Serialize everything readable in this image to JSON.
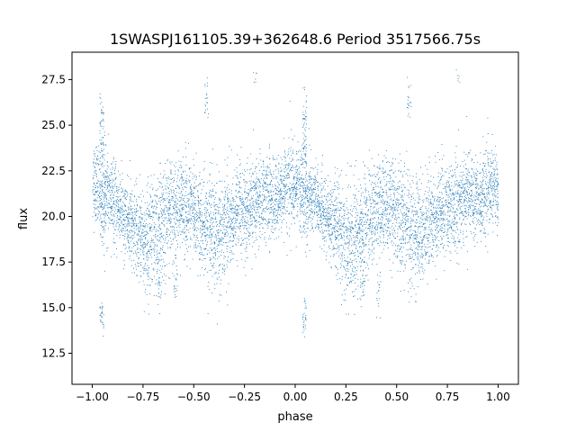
{
  "chart_data": {
    "type": "scatter",
    "title": "1SWASPJ161105.39+362648.6 Period 3517566.75s",
    "xlabel": "phase",
    "ylabel": "flux",
    "xlim": [
      -1.1,
      1.1
    ],
    "ylim": [
      10.8,
      29.0
    ],
    "xticks": [
      -1.0,
      -0.75,
      -0.5,
      -0.25,
      0.0,
      0.25,
      0.5,
      0.75,
      1.0
    ],
    "xtick_labels": [
      "−1.00",
      "−0.75",
      "−0.50",
      "−0.25",
      "0.00",
      "0.25",
      "0.50",
      "0.75",
      "1.00"
    ],
    "yticks": [
      12.5,
      15.0,
      17.5,
      20.0,
      22.5,
      25.0,
      27.5
    ],
    "ytick_labels": [
      "12.5",
      "15.0",
      "17.5",
      "20.0",
      "22.5",
      "25.0",
      "27.5"
    ],
    "grid": false,
    "marker_color": "#1f77b4",
    "series": [
      {
        "x": [
          -0.99,
          -0.97,
          -0.95,
          -0.93,
          -0.91,
          -0.89,
          -0.87,
          -0.85,
          -0.83,
          -0.81,
          -0.79,
          -0.77,
          -0.75,
          -0.73,
          -0.71,
          -0.69,
          -0.67,
          -0.65,
          -0.63,
          -0.61,
          -0.59,
          -0.57,
          -0.55,
          -0.53,
          -0.51,
          -0.49,
          -0.47,
          -0.45,
          -0.43,
          -0.41,
          -0.39,
          -0.37,
          -0.35,
          -0.33,
          -0.31,
          -0.29,
          -0.27,
          -0.25,
          -0.23,
          -0.21,
          -0.19,
          -0.17,
          -0.15,
          -0.13,
          -0.11,
          -0.09,
          -0.07,
          -0.05,
          -0.03,
          -0.01,
          0.01,
          0.03,
          0.05,
          0.07,
          0.09,
          0.11,
          0.13,
          0.15,
          0.17,
          0.19,
          0.21,
          0.23,
          0.25,
          0.27,
          0.29,
          0.31,
          0.33,
          0.35,
          0.37,
          0.39,
          0.41,
          0.43,
          0.45,
          0.47,
          0.49,
          0.51,
          0.53,
          0.55,
          0.57,
          0.59,
          0.61,
          0.63,
          0.65,
          0.67,
          0.69,
          0.71,
          0.73,
          0.75,
          0.77,
          0.79,
          0.81,
          0.83,
          0.85,
          0.87,
          0.89,
          0.91,
          0.93,
          0.95,
          0.97,
          0.99,
          -0.955,
          -0.955,
          0.045,
          0.045,
          -0.955,
          0.045,
          -0.44,
          0.56,
          -0.59,
          0.41,
          -0.67,
          0.33,
          -0.2,
          0.8
        ],
        "y": [
          21.8,
          21.5,
          20.9,
          21.2,
          21.0,
          20.6,
          20.4,
          20.0,
          19.8,
          19.6,
          19.3,
          19.0,
          18.8,
          18.6,
          18.7,
          18.9,
          19.3,
          19.7,
          20.0,
          20.3,
          20.5,
          20.6,
          20.7,
          20.5,
          20.3,
          20.0,
          19.7,
          19.4,
          19.2,
          19.0,
          19.1,
          19.3,
          19.6,
          19.9,
          20.1,
          20.3,
          20.4,
          20.4,
          20.3,
          20.5,
          20.8,
          21.0,
          21.2,
          21.0,
          20.8,
          20.9,
          21.3,
          21.6,
          21.8,
          21.6,
          21.8,
          21.5,
          20.9,
          21.2,
          21.0,
          20.6,
          20.4,
          20.0,
          19.8,
          19.6,
          19.3,
          19.0,
          18.8,
          18.6,
          18.7,
          18.9,
          19.3,
          19.7,
          20.0,
          20.3,
          20.5,
          20.6,
          20.7,
          20.5,
          20.3,
          20.0,
          19.7,
          19.4,
          19.2,
          19.0,
          19.1,
          19.3,
          19.6,
          19.9,
          20.1,
          20.3,
          20.4,
          20.4,
          20.3,
          20.5,
          20.8,
          21.0,
          21.2,
          21.0,
          20.8,
          20.9,
          21.3,
          21.6,
          21.8,
          21.6,
          25.2,
          14.6,
          25.2,
          14.6,
          23.5,
          23.5,
          26.3,
          26.3,
          16.3,
          16.3,
          15.9,
          15.9,
          27.6,
          27.6
        ],
        "spread": [
          1.1,
          1.1,
          1.3,
          1.2,
          1.1,
          1.1,
          1.0,
          1.0,
          1.0,
          1.1,
          1.2,
          1.3,
          1.4,
          1.5,
          1.6,
          1.6,
          1.6,
          1.5,
          1.4,
          1.3,
          1.3,
          1.3,
          1.3,
          1.3,
          1.3,
          1.4,
          1.4,
          1.5,
          1.5,
          1.5,
          1.5,
          1.5,
          1.4,
          1.4,
          1.3,
          1.3,
          1.3,
          1.2,
          1.2,
          1.2,
          1.2,
          1.2,
          1.2,
          1.2,
          1.1,
          1.1,
          1.1,
          1.2,
          1.2,
          1.1,
          1.1,
          1.3,
          1.2,
          1.1,
          1.1,
          1.0,
          1.0,
          1.0,
          1.1,
          1.2,
          1.3,
          1.4,
          1.5,
          1.6,
          1.6,
          1.6,
          1.5,
          1.4,
          1.3,
          1.3,
          1.3,
          1.3,
          1.3,
          1.3,
          1.4,
          1.4,
          1.5,
          1.5,
          1.5,
          1.5,
          1.5,
          1.4,
          1.4,
          1.3,
          1.3,
          1.3,
          1.2,
          1.2,
          1.2,
          1.2,
          1.2,
          1.2,
          1.2,
          1.1,
          1.1,
          1.1,
          1.2,
          1.2,
          1.1,
          1.1,
          0.8,
          0.5,
          0.8,
          0.5,
          0.4,
          0.4,
          0.5,
          0.5,
          0.8,
          0.8,
          0.6,
          0.6,
          0.3,
          0.3
        ],
        "density": [
          70,
          70,
          90,
          80,
          70,
          70,
          70,
          70,
          70,
          70,
          70,
          70,
          70,
          70,
          70,
          70,
          70,
          70,
          70,
          70,
          70,
          70,
          70,
          70,
          70,
          70,
          70,
          70,
          70,
          70,
          70,
          70,
          70,
          70,
          70,
          70,
          70,
          70,
          70,
          70,
          70,
          70,
          70,
          70,
          70,
          70,
          70,
          70,
          70,
          70,
          70,
          90,
          80,
          70,
          70,
          70,
          70,
          70,
          70,
          70,
          70,
          70,
          70,
          70,
          70,
          70,
          70,
          70,
          70,
          70,
          70,
          70,
          70,
          70,
          70,
          70,
          70,
          70,
          70,
          70,
          70,
          70,
          70,
          70,
          70,
          70,
          70,
          70,
          70,
          70,
          70,
          70,
          70,
          70,
          70,
          70,
          70,
          70,
          70,
          70,
          40,
          30,
          40,
          30,
          20,
          20,
          20,
          20,
          20,
          20,
          20,
          20,
          6,
          6
        ]
      }
    ]
  }
}
